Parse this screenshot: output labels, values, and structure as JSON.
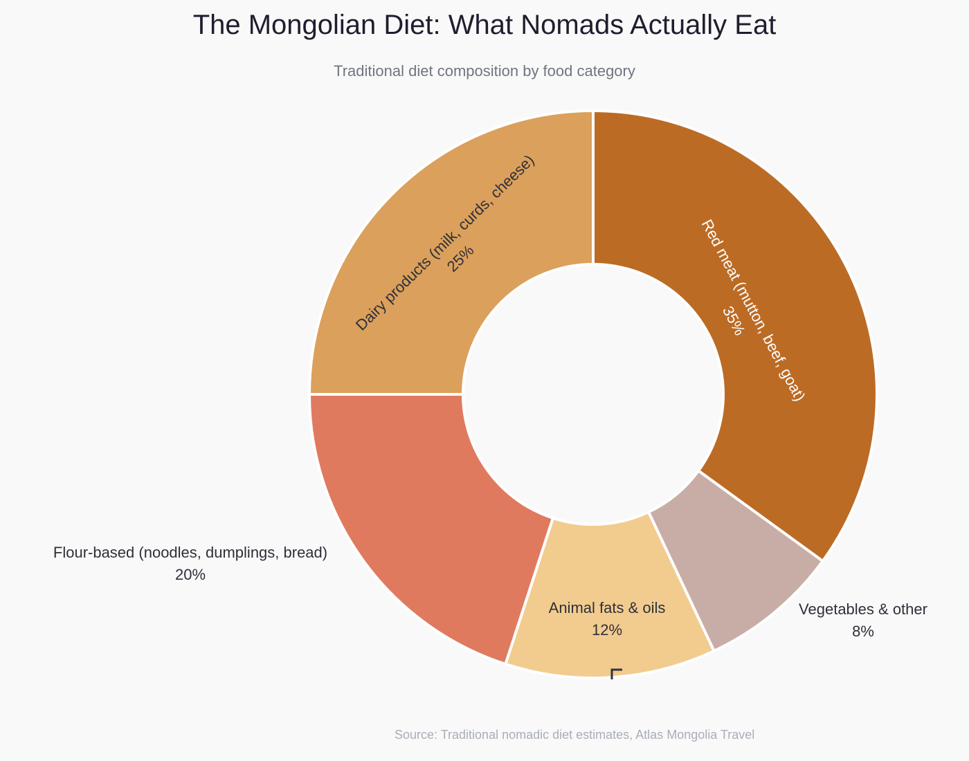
{
  "title": "The Mongolian Diet: What Nomads Actually Eat",
  "subtitle": "Traditional diet composition by food category",
  "source": "Source: Traditional nomadic diet estimates, Atlas Mongolia Travel",
  "chart_data": {
    "type": "pie",
    "hole": true,
    "title": "The Mongolian Diet: What Nomads Actually Eat",
    "subtitle": "Traditional diet composition by food category",
    "direction": "clockwise",
    "start": "12 o'clock",
    "slices": [
      {
        "label": "Red meat (mutton, beef, goat)",
        "value": 35,
        "text": "35%",
        "color": "#BC6B25",
        "text_color": "#ffffff"
      },
      {
        "label": "Vegetables & other",
        "value": 8,
        "text": "8%",
        "color": "#C8ADA6",
        "text_color": "#2f2f3a"
      },
      {
        "label": "Animal fats & oils",
        "value": 12,
        "text": "12%",
        "color": "#F2CC8F",
        "text_color": "#2f2f3a"
      },
      {
        "label": "Flour-based (noodles, dumplings, bread)",
        "value": 20,
        "text": "20%",
        "color": "#E07A5F",
        "text_color": "#2f2f3a"
      },
      {
        "label": "Dairy products (milk, curds, cheese)",
        "value": 25,
        "text": "25%",
        "color": "#DBA05B",
        "text_color": "#2f2f3a"
      }
    ]
  }
}
